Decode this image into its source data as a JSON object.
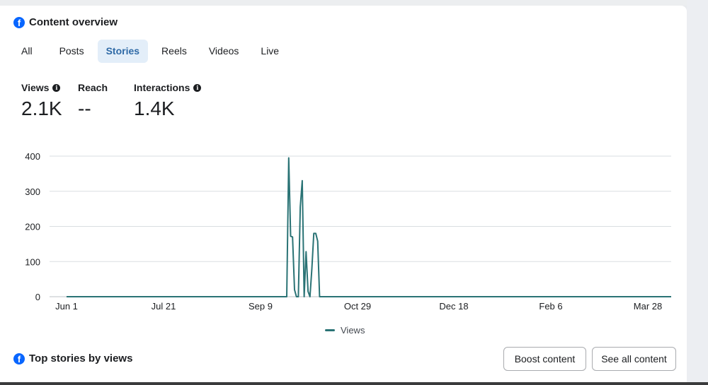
{
  "content_overview": {
    "title": "Content overview",
    "icon": "facebook-icon"
  },
  "tabs": [
    {
      "label": "All",
      "active": false
    },
    {
      "label": "Posts",
      "active": false
    },
    {
      "label": "Stories",
      "active": true
    },
    {
      "label": "Reels",
      "active": false
    },
    {
      "label": "Videos",
      "active": false
    },
    {
      "label": "Live",
      "active": false
    }
  ],
  "metrics": [
    {
      "label": "Views",
      "value": "2.1K",
      "icon": "info-icon"
    },
    {
      "label": "Reach",
      "value": "--"
    },
    {
      "label": "Interactions",
      "value": "1.4K",
      "icon": "info-icon"
    }
  ],
  "chart_data": {
    "type": "line",
    "ylim": [
      0,
      400
    ],
    "yticks": [
      0,
      100,
      200,
      300,
      400
    ],
    "xticks": [
      "Jun 1",
      "Jul 21",
      "Sep 9",
      "Oct 29",
      "Dec 18",
      "Feb 6",
      "Mar 28"
    ],
    "xlim": [
      0,
      313
    ],
    "grid": true,
    "legend_placement": "bottom-center",
    "series": [
      {
        "name": "Views",
        "color": "#2a7375",
        "x": [
          0,
          114,
          115,
          116,
          117,
          118,
          119,
          120,
          121,
          122,
          123,
          124,
          125,
          126,
          127,
          128,
          129,
          130,
          131,
          132,
          313
        ],
        "y": [
          0,
          0,
          395,
          172,
          170,
          20,
          0,
          0,
          255,
          330,
          0,
          128,
          15,
          0,
          80,
          180,
          180,
          158,
          0,
          0,
          0
        ]
      }
    ]
  },
  "top_stories": {
    "title": "Top stories by views",
    "icon": "facebook-icon",
    "boost_label": "Boost content",
    "see_all_label": "See all content"
  }
}
